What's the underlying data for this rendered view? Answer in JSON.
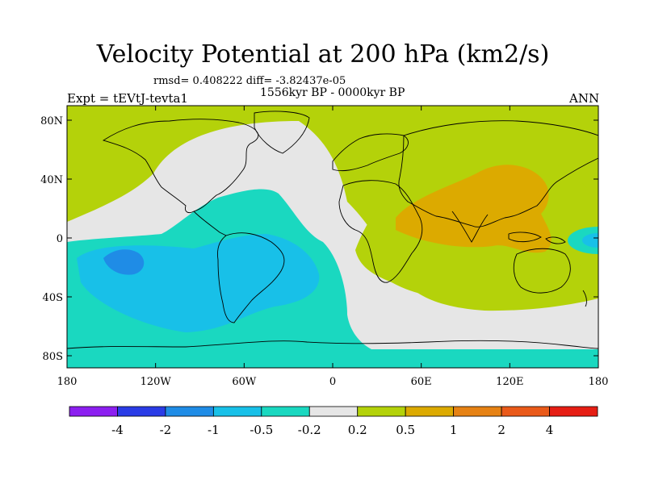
{
  "title": "Velocity Potential at 200 hPa (km2/s)",
  "stats": "rmsd= 0.408222 diff= -3.82437e-05",
  "period": "1556kyr BP - 0000kyr BP",
  "experiment": "Expt = tEVtJ-tevta1",
  "season": "ANN",
  "map": {
    "x_ticks": [
      "180",
      "120W",
      "60W",
      "0",
      "60E",
      "120E",
      "180"
    ],
    "y_ticks": [
      "80N",
      "40N",
      "0",
      "40S",
      "80S"
    ],
    "regions": [
      {
        "id": "north-green",
        "level": "0.2 to 0.5"
      },
      {
        "id": "eastern-hemisphere-green",
        "level": "0.2 to 0.5"
      },
      {
        "id": "asia-orange",
        "level": "0.5 to 1"
      },
      {
        "id": "neutral-band",
        "level": "-0.2 to 0.2"
      },
      {
        "id": "pacific-teal",
        "level": "-0.5 to -0.2"
      },
      {
        "id": "south-america-blue",
        "level": "-1 to -0.5"
      },
      {
        "id": "south-pacific-core",
        "level": "-2 to -1"
      },
      {
        "id": "west-pacific-cyan",
        "level": "-1 to -0.5"
      }
    ]
  },
  "colorbar": {
    "colors": [
      "#8c1ff0",
      "#2a3ce6",
      "#1f8ce6",
      "#18c0e8",
      "#1ad8c0",
      "#e6e6e6",
      "#b4d20a",
      "#dcaa00",
      "#e68214",
      "#ea5a1a",
      "#e61e14"
    ],
    "labels": [
      "-4",
      "-2",
      "-1",
      "-0.5",
      "-0.2",
      "0.2",
      "0.5",
      "1",
      "2",
      "4"
    ]
  },
  "palette": {
    "plot_bg": "#b4d20a",
    "coast": "#000000"
  }
}
